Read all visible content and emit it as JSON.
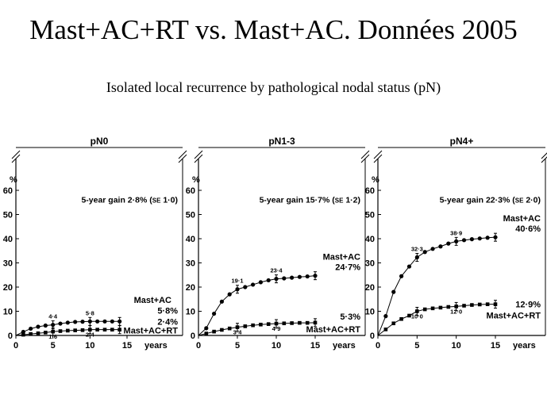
{
  "slide": {
    "title": "Mast+AC+RT vs. Mast+AC. Données 2005",
    "subtitle": "Isolated local recurrence by pathological nodal status (pN)"
  },
  "chart_data": [
    {
      "type": "line",
      "title": "pN0",
      "ylabel": "%",
      "xlabel": "years",
      "ylim": [
        0,
        60
      ],
      "xlim": [
        0,
        15
      ],
      "yticks": [
        0,
        10,
        20,
        30,
        40,
        50,
        60
      ],
      "xticks": [
        0,
        5,
        10,
        15
      ],
      "gain_text": "5-year gain 2·8% (",
      "gain_se": "SE",
      "gain_value": " 1·0)",
      "series": [
        {
          "name": "Mast+AC",
          "end_label": "5·8%",
          "x": [
            0,
            1,
            2,
            3,
            4,
            5,
            6,
            7,
            8,
            9,
            10,
            11,
            12,
            13,
            14
          ],
          "values": [
            0,
            1.5,
            2.8,
            3.6,
            4.1,
            4.4,
            4.9,
            5.3,
            5.6,
            5.7,
            5.8,
            5.8,
            5.8,
            5.8,
            5.8
          ],
          "annotations": [
            {
              "x": 5,
              "text": "4·4"
            },
            {
              "x": 10,
              "text": "5·8"
            }
          ]
        },
        {
          "name": "Mast+AC+RT",
          "end_label": "2·4%",
          "x": [
            0,
            1,
            2,
            3,
            4,
            5,
            6,
            7,
            8,
            9,
            10,
            11,
            12,
            13,
            14
          ],
          "values": [
            0,
            0.3,
            0.6,
            0.9,
            1.2,
            1.6,
            1.8,
            2.0,
            2.1,
            2.2,
            2.4,
            2.4,
            2.4,
            2.4,
            2.4
          ],
          "annotations": [
            {
              "x": 5,
              "text": "1·6"
            },
            {
              "x": 10,
              "text": "2·4"
            }
          ]
        }
      ]
    },
    {
      "type": "line",
      "title": "pN1-3",
      "ylabel": "%",
      "xlabel": "years",
      "ylim": [
        0,
        60
      ],
      "xlim": [
        0,
        15
      ],
      "yticks": [
        0,
        10,
        20,
        30,
        40,
        50,
        60
      ],
      "xticks": [
        0,
        5,
        10,
        15
      ],
      "gain_text": "5-year gain 15·7% (",
      "gain_se": "SE",
      "gain_value": " 1·2)",
      "series": [
        {
          "name": "Mast+AC",
          "end_label": "24·7%",
          "x": [
            0,
            1,
            2,
            3,
            4,
            5,
            6,
            7,
            8,
            9,
            10,
            11,
            12,
            13,
            14,
            15
          ],
          "values": [
            0,
            3,
            9,
            14,
            17,
            19.1,
            20,
            21,
            22,
            22.8,
            23.4,
            23.6,
            23.9,
            24.2,
            24.4,
            24.7
          ],
          "annotations": [
            {
              "x": 5,
              "text": "19·1"
            },
            {
              "x": 10,
              "text": "23·4"
            }
          ]
        },
        {
          "name": "Mast+AC+RT",
          "end_label": "5·3%",
          "x": [
            0,
            1,
            2,
            3,
            4,
            5,
            6,
            7,
            8,
            9,
            10,
            11,
            12,
            13,
            14,
            15
          ],
          "values": [
            0,
            0.8,
            1.6,
            2.3,
            2.9,
            3.4,
            3.8,
            4.2,
            4.5,
            4.7,
            4.9,
            5.0,
            5.1,
            5.2,
            5.2,
            5.3
          ],
          "annotations": [
            {
              "x": 5,
              "text": "3·4"
            },
            {
              "x": 10,
              "text": "4·9"
            }
          ]
        }
      ]
    },
    {
      "type": "line",
      "title": "pN4+",
      "ylabel": "%",
      "xlabel": "years",
      "ylim": [
        0,
        60
      ],
      "xlim": [
        0,
        15
      ],
      "yticks": [
        0,
        10,
        20,
        30,
        40,
        50,
        60
      ],
      "xticks": [
        0,
        5,
        10,
        15
      ],
      "gain_text": "5-year gain 22·3% (",
      "gain_se": "SE",
      "gain_value": " 2·0)",
      "series": [
        {
          "name": "Mast+AC",
          "end_label": "40·6%",
          "x": [
            0,
            1,
            2,
            3,
            4,
            5,
            6,
            7,
            8,
            9,
            10,
            11,
            12,
            13,
            14,
            15
          ],
          "values": [
            0,
            8,
            18,
            24.5,
            28.5,
            32.3,
            34.5,
            35.8,
            36.8,
            38,
            38.9,
            39.4,
            39.8,
            40.1,
            40.4,
            40.6
          ],
          "annotations": [
            {
              "x": 5,
              "text": "32·3"
            },
            {
              "x": 10,
              "text": "38·9"
            }
          ]
        },
        {
          "name": "Mast+AC+RT",
          "end_label": "12·9%",
          "x": [
            0,
            1,
            2,
            3,
            4,
            5,
            6,
            7,
            8,
            9,
            10,
            11,
            12,
            13,
            14,
            15
          ],
          "values": [
            0,
            2.5,
            5,
            6.8,
            8.2,
            10,
            10.8,
            11.2,
            11.5,
            11.8,
            12,
            12.3,
            12.6,
            12.8,
            12.9,
            12.9
          ],
          "annotations": [
            {
              "x": 5,
              "text": "10·0"
            },
            {
              "x": 10,
              "text": "12·0"
            }
          ]
        }
      ]
    }
  ]
}
